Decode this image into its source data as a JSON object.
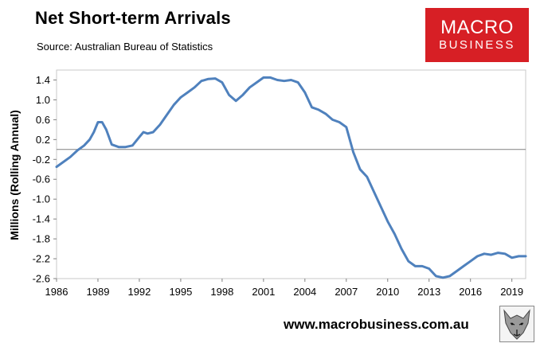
{
  "chart_data": {
    "type": "line",
    "title": "Net Short-term Arrivals",
    "subtitle": "Source: Australian Bureau of Statistics",
    "xlabel": "",
    "ylabel": "Millions (Rolling Annual)",
    "xlim": [
      1986,
      2020
    ],
    "ylim": [
      -2.6,
      1.6
    ],
    "x_ticks": [
      "1986",
      "1989",
      "1992",
      "1995",
      "1998",
      "2001",
      "2004",
      "2007",
      "2010",
      "2013",
      "2016",
      "2019"
    ],
    "y_ticks": [
      "1.4",
      "1.0",
      "0.6",
      "0.2",
      "-0.2",
      "-0.6",
      "-1.0",
      "-1.4",
      "-1.8",
      "-2.2",
      "-2.6"
    ],
    "grid": false,
    "series": [
      {
        "x": [
          1986.0,
          1986.5,
          1987.0,
          1987.5,
          1988.0,
          1988.4,
          1988.7,
          1989.0,
          1989.3,
          1989.6,
          1990.0,
          1990.5,
          1991.0,
          1991.5,
          1992.0,
          1992.3,
          1992.6,
          1993.0,
          1993.5,
          1994.0,
          1994.5,
          1995.0,
          1995.5,
          1996.0,
          1996.5,
          1997.0,
          1997.5,
          1998.0,
          1998.5,
          1999.0,
          1999.5,
          2000.0,
          2000.5,
          2001.0,
          2001.5,
          2002.0,
          2002.5,
          2003.0,
          2003.5,
          2004.0,
          2004.5,
          2005.0,
          2005.5,
          2006.0,
          2006.5,
          2007.0,
          2007.5,
          2008.0,
          2008.5,
          2009.0,
          2009.5,
          2010.0,
          2010.5,
          2011.0,
          2011.5,
          2012.0,
          2012.5,
          2013.0,
          2013.5,
          2014.0,
          2014.5,
          2015.0,
          2015.5,
          2016.0,
          2016.5,
          2017.0,
          2017.5,
          2018.0,
          2018.5,
          2019.0,
          2019.5,
          2020.0
        ],
        "y": [
          -0.35,
          -0.25,
          -0.15,
          -0.02,
          0.08,
          0.2,
          0.35,
          0.55,
          0.55,
          0.4,
          0.1,
          0.05,
          0.05,
          0.08,
          0.25,
          0.35,
          0.32,
          0.35,
          0.5,
          0.7,
          0.9,
          1.05,
          1.15,
          1.25,
          1.38,
          1.42,
          1.43,
          1.35,
          1.1,
          0.98,
          1.1,
          1.25,
          1.35,
          1.45,
          1.45,
          1.4,
          1.38,
          1.4,
          1.35,
          1.15,
          0.85,
          0.8,
          0.72,
          0.6,
          0.55,
          0.45,
          -0.05,
          -0.4,
          -0.55,
          -0.85,
          -1.15,
          -1.45,
          -1.7,
          -2.0,
          -2.25,
          -2.35,
          -2.35,
          -2.4,
          -2.55,
          -2.58,
          -2.55,
          -2.45,
          -2.35,
          -2.25,
          -2.15,
          -2.1,
          -2.12,
          -2.08,
          -2.1,
          -2.18,
          -2.15,
          -2.15
        ]
      }
    ]
  },
  "logo": {
    "line1": "MACRO",
    "line2": "BUSINESS"
  },
  "footer": {
    "url": "www.macrobusiness.com.au"
  },
  "colors": {
    "line": "#4f81bd",
    "logo_bg": "#d71f25"
  },
  "icons": {
    "footer_logo": "wolf-icon"
  }
}
